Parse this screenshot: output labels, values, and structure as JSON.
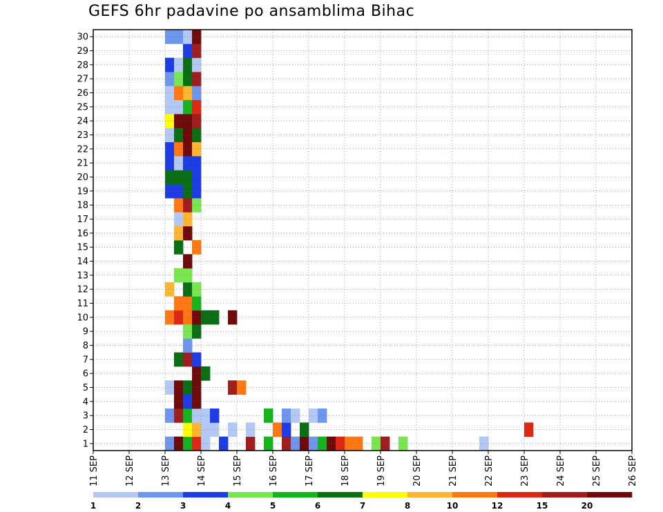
{
  "chart_data": {
    "type": "heatmap",
    "title": "GEFS 6hr padavine po ansamblima Bihac",
    "y_tick_labels": [
      "1",
      "2",
      "3",
      "4",
      "5",
      "6",
      "7",
      "8",
      "9",
      "10",
      "11",
      "12",
      "13",
      "14",
      "15",
      "16",
      "17",
      "18",
      "19",
      "20",
      "21",
      "22",
      "23",
      "24",
      "25",
      "26",
      "27",
      "28",
      "29",
      "30"
    ],
    "x_tick_labels": [
      "11 SEP",
      "12 SEP",
      "13 SEP",
      "14 SEP",
      "15 SEP",
      "16 SEP",
      "17 SEP",
      "18 SEP",
      "19 SEP",
      "20 SEP",
      "21 SEP",
      "22 SEP",
      "23 SEP",
      "24 SEP",
      "25 SEP",
      "26 SEP"
    ],
    "grid": true,
    "legend_placement": "bottom",
    "colorbar": {
      "boundaries": [
        "1",
        "2",
        "3",
        "4",
        "5",
        "6",
        "7",
        "8",
        "10",
        "12",
        "15",
        "20"
      ],
      "colors": [
        "#b4c8f5",
        "#6e96ed",
        "#1e3ce6",
        "#78e650",
        "#14b41e",
        "#0a6e14",
        "#ffff00",
        "#ffb432",
        "#ff7814",
        "#dc2814",
        "#a01e1e",
        "#6e0a0a"
      ]
    },
    "members": 30,
    "time_steps_per_day": 4,
    "first_date": "11 SEP",
    "last_date": "26 SEP",
    "values_encoding": "each member row lists precipitation class index per 6hr step from 13 SEP 00Z; 0 = below 1 mm, 1..12 = colorbar classes",
    "first_step_date": "13 SEP",
    "member_rows": {
      "1": "2C5A10300B050B2C25CA9904B04000000001000000000000000000000000000000",
      "2": "0078110101009306000000000000000000000000A0000000000000000000000000",
      "3": "2B511300000502101200000000000000000000000000000000000000000000000000",
      "4": "0C3C000000000000000000000000000000000000000000000000000000000000000",
      "5": "1C6C000B90000000000000000000000000000000000000000000000000000000000",
      "6": "000C60000000000000000000000000000000000000000000000000000000000000",
      "7": "06B3000000000000000000000000000000000000000000000000000000000000000",
      "8": "002000000000000000000000000000000000000000000000000000000000000000",
      "9": "004600000000000000000000000000000000000000000000000000000000000000",
      "10": "9A9C660C0000000000000000000000000000000000000000000000000000000000",
      "11": "099500000000000000000000000000000000000000000000000000000000000000",
      "12": "806400000000000000000000000000000000000000000000000000000000000000",
      "13": "0440000000000000000000000000000000000000000000000000000000000000000",
      "14": "00C000000000000000000000000000000000000000000000000000000000000000",
      "15": "060900000000000000000000000000000000000000000000000000000000000000",
      "16": "08C000000000000000000000000000000000000000000000000000000000000000",
      "17": "0180000000000000000000000000000000000000000000000000000000000000000",
      "18": "09B400000000000000000000000000000000000000000000000000000000000000",
      "19": "33630000000000000000000000000000000000000000000000000000000000000",
      "20": "666300000000000000000000000000000000000000000000000000000000000000",
      "21": "313300000000000000000000000000000000000000000000000000000000000000",
      "22": "39C800000000000000000000000000000000000000000000000000000000000000",
      "23": "16C600000000000000000000000000000000000000000000000000000000000000",
      "24": "7CCB00000000000000000000000000000000000000000000000000000000000000",
      "25": "115A00000000000000000000000000000000000000000000000000000000000000",
      "26": "198200000000000000000000000000000000000000000000000000000000000000",
      "27": "246B00000000000000000000000000000000000000000000000000000000000000",
      "28": "316100000000000000000000000000000000000000000000000000000000000000",
      "29": "003B00000000000000000000000000000000000000000000000000000000000000",
      "30": "221C00000000000000000000000000000000000000000000000000000000000000"
    }
  }
}
